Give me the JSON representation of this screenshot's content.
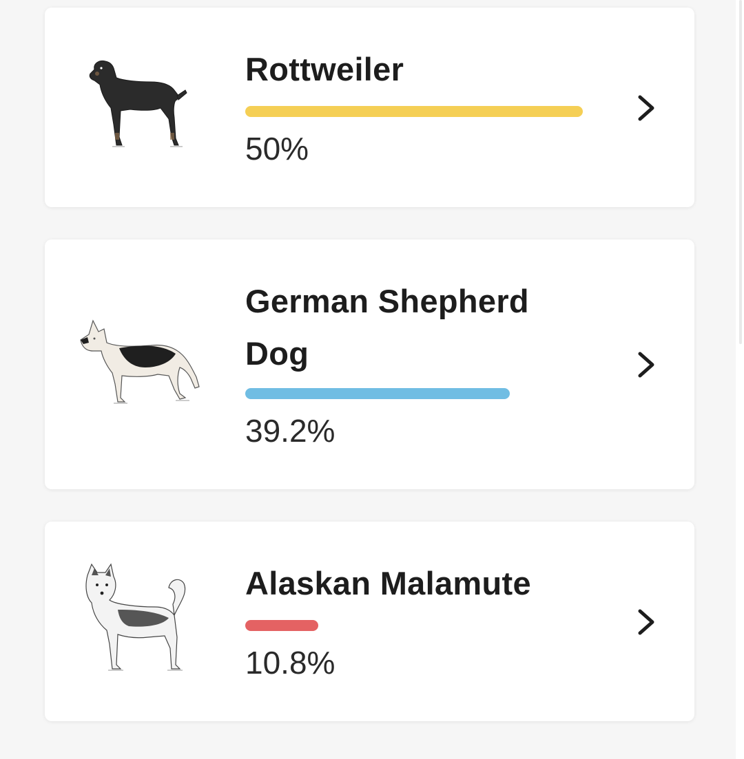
{
  "breeds": [
    {
      "name": "Rottweiler",
      "percent_label": "50%",
      "share": 0.5,
      "bar_color": "#f5cf55",
      "icon": "rottweiler-illustration-icon"
    },
    {
      "name": "German Shepherd Dog",
      "percent_label": "39.2%",
      "share": 0.392,
      "bar_color": "#70bde3",
      "icon": "german-shepherd-illustration-icon"
    },
    {
      "name": "Alaskan Malamute",
      "percent_label": "10.8%",
      "share": 0.108,
      "bar_color": "#e46263",
      "icon": "alaskan-malamute-illustration-icon"
    }
  ],
  "colors": {
    "background": "#f6f6f6",
    "card": "#ffffff",
    "text": "#1d1d1d",
    "chevron": "#1d1d1d"
  },
  "chevron_icon": "chevron-right-icon"
}
